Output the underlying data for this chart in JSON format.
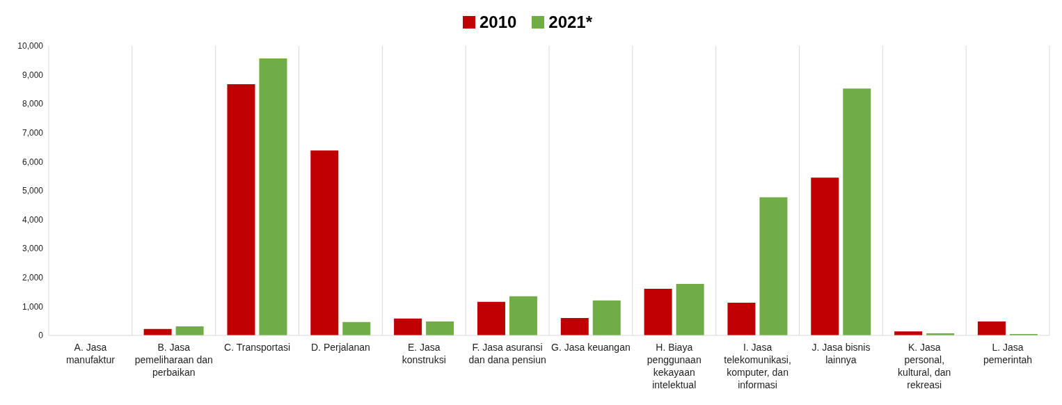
{
  "chart_data": {
    "type": "bar",
    "categories": [
      "A. Jasa manufaktur",
      "B. Jasa pemeliharaan dan perbaikan",
      "C. Transportasi",
      "D. Perjalanan",
      "E. Jasa konstruksi",
      "F. Jasa asuransi dan dana pensiun",
      "G. Jasa keuangan",
      "H. Biaya penggunaan kekayaan intelektual",
      "I. Jasa telekomunikasi, komputer, dan informasi",
      "J. Jasa bisnis lainnya",
      "K. Jasa personal, kultural, dan rekreasi",
      "L. Jasa pemerintah"
    ],
    "series": [
      {
        "name": "2010",
        "color": "#c00000",
        "values": [
          0,
          220,
          8680,
          6390,
          580,
          1160,
          600,
          1610,
          1130,
          5450,
          140,
          480
        ]
      },
      {
        "name": "2021*",
        "color": "#70ad47",
        "values": [
          0,
          310,
          9570,
          460,
          480,
          1350,
          1210,
          1780,
          4770,
          8530,
          70,
          50
        ]
      }
    ],
    "ylim": [
      0,
      10000
    ],
    "yticks": [
      0,
      {
        "value": 1000,
        "label": "1,000"
      },
      {
        "value": 2000,
        "label": "2,000"
      },
      {
        "value": 3000,
        "label": "3,000"
      },
      {
        "value": 4000,
        "label": "4,000"
      },
      {
        "value": 5000,
        "label": "5,000"
      },
      {
        "value": 6000,
        "label": "6,000"
      },
      {
        "value": 7000,
        "label": "7,000"
      },
      {
        "value": 8000,
        "label": "8,000"
      },
      {
        "value": 9000,
        "label": "9,000"
      },
      {
        "value": 10000,
        "label": "10,000"
      }
    ],
    "grid": "x",
    "legend": "top"
  }
}
